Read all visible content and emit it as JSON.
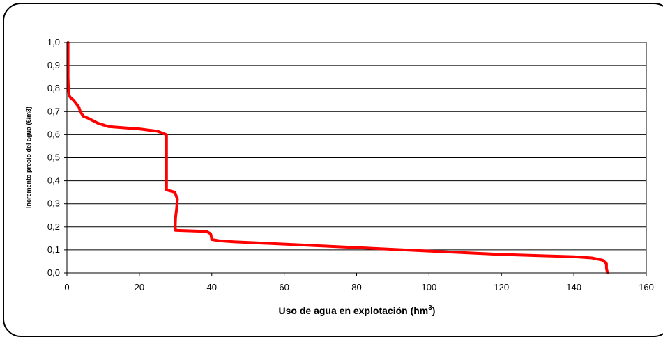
{
  "chart_data": {
    "type": "line",
    "title": "",
    "xlabel": "Uso de agua en explotación (hm",
    "xlabel_superscript": "3",
    "xlabel_suffix": ")",
    "ylabel": "Incremento precio del agua (€/m3)",
    "xlim": [
      0,
      160
    ],
    "ylim": [
      0,
      1
    ],
    "x_ticks": [
      "0",
      "20",
      "40",
      "60",
      "80",
      "100",
      "120",
      "140",
      "160"
    ],
    "y_ticks": [
      "0,0",
      "0,1",
      "0,2",
      "0,3",
      "0,4",
      "0,5",
      "0,6",
      "0,7",
      "0,8",
      "0,9",
      "1,0"
    ],
    "grid": "horizontal",
    "legend": "none",
    "series": [
      {
        "color": "#ff0000",
        "x": [
          0.3,
          0.3,
          0.4,
          0.6,
          1.0,
          1.8,
          2.8,
          3.3,
          3.7,
          4.5,
          6.0,
          8.5,
          11.5,
          20.0,
          25.0,
          27.5,
          27.5,
          27.5,
          29.8,
          30.5,
          30.3,
          30.0,
          29.9,
          30.0,
          38.5,
          39.7,
          40.0,
          42.0,
          46.0,
          60.0,
          80.0,
          100.0,
          120.0,
          140.0,
          145.0,
          148.0,
          149.0,
          149.0,
          149.3
        ],
        "y": [
          1.0,
          0.85,
          0.8,
          0.77,
          0.76,
          0.75,
          0.73,
          0.72,
          0.7,
          0.68,
          0.67,
          0.65,
          0.635,
          0.625,
          0.615,
          0.6,
          0.45,
          0.36,
          0.35,
          0.32,
          0.28,
          0.24,
          0.2,
          0.185,
          0.18,
          0.17,
          0.145,
          0.14,
          0.135,
          0.125,
          0.11,
          0.095,
          0.08,
          0.07,
          0.065,
          0.055,
          0.04,
          0.02,
          0.0
        ]
      }
    ]
  }
}
